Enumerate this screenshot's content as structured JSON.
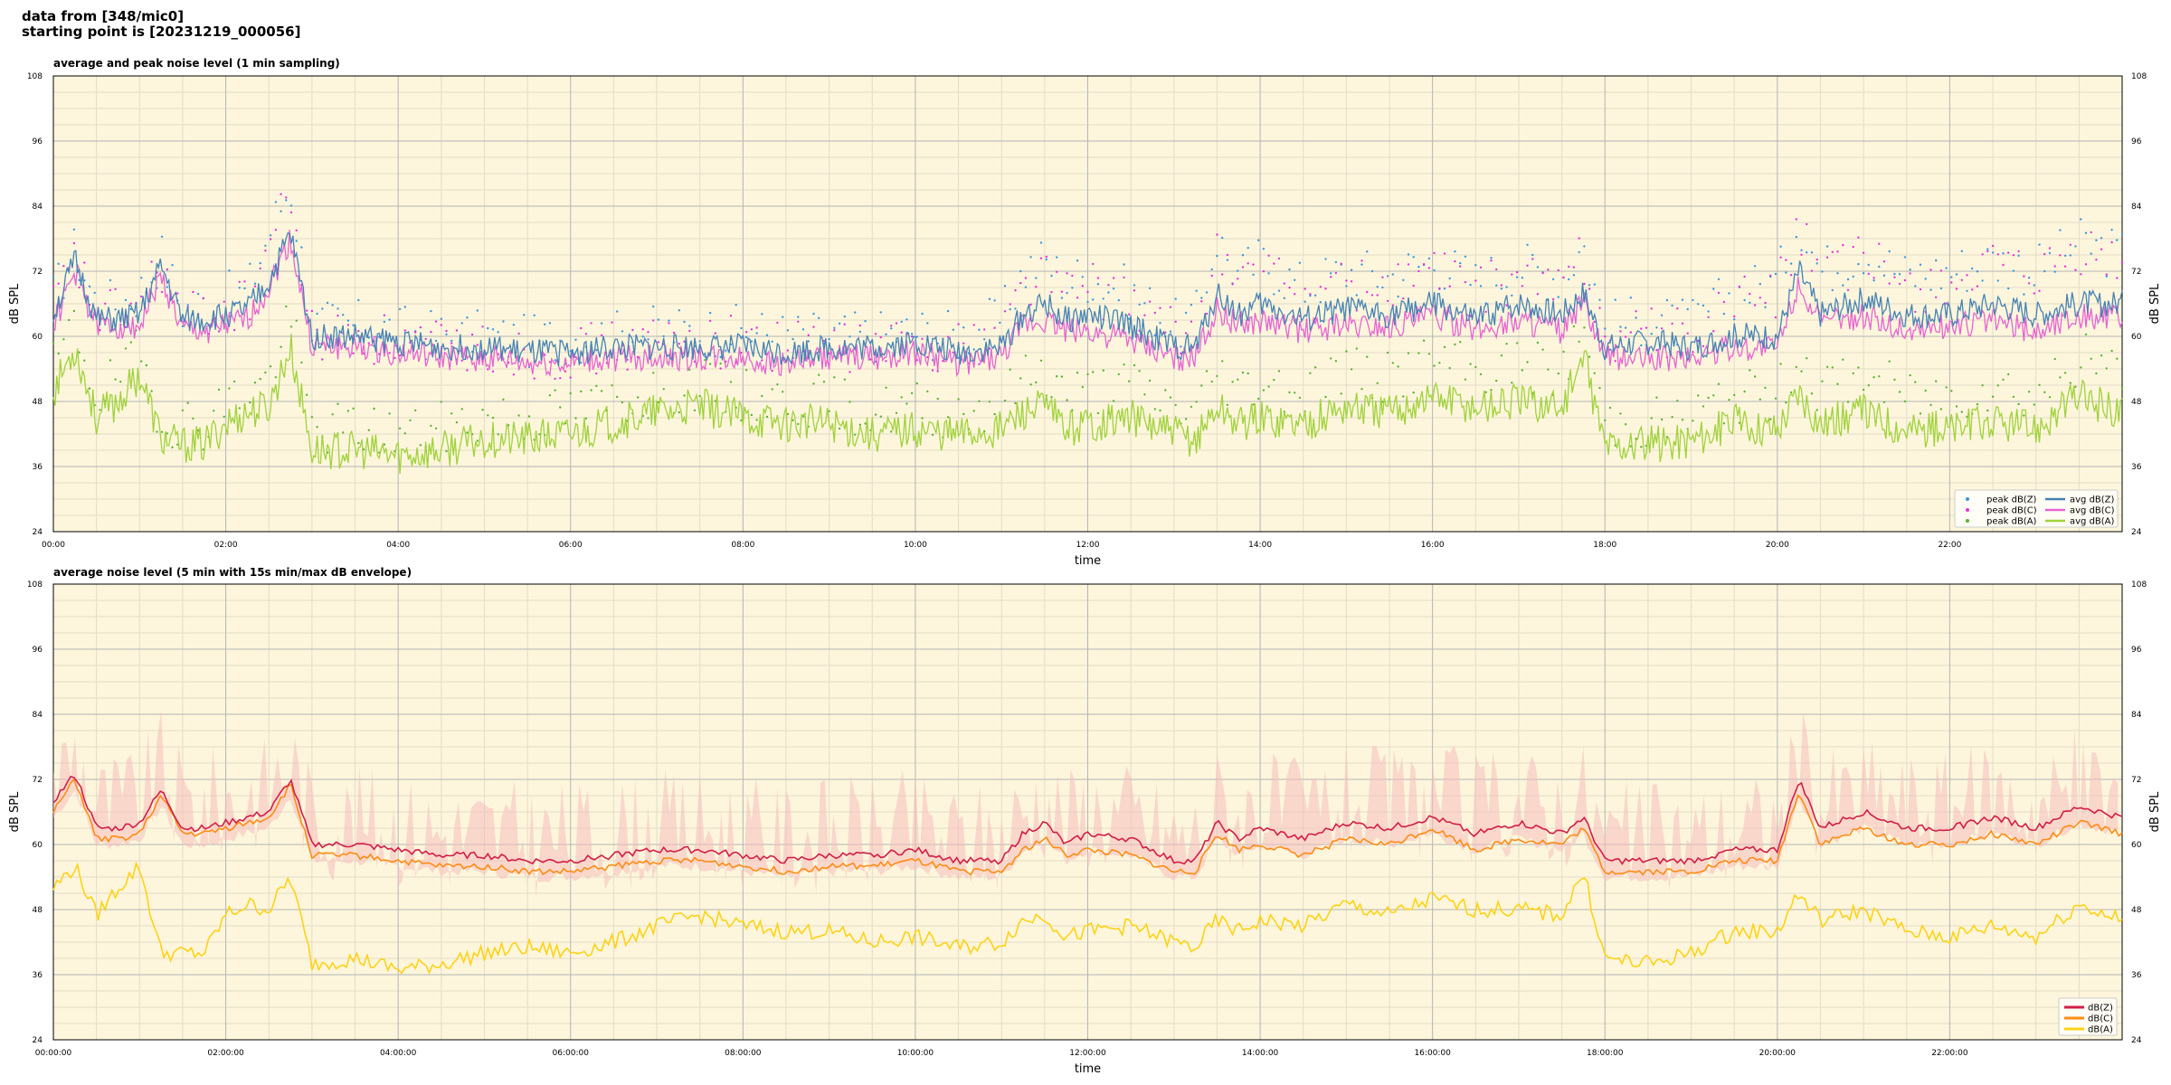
{
  "figure": {
    "title_line1": "data from [348/mic0]",
    "title_line2": "starting point is [20231219_000056]"
  },
  "colors": {
    "background": "#fdf6dc",
    "grid_major": "#b4b4b4",
    "grid_minor": "#e3dcc8",
    "peak_z": "#3c96dc",
    "peak_c": "#e632dc",
    "peak_a": "#5ab432",
    "avg_z": "#4682b4",
    "avg_c": "#e664d2",
    "avg_a": "#a0d23c",
    "dbz": "#d21e46",
    "dbc": "#ff8c14",
    "dba": "#ffd214",
    "envelope": "#f5bebe"
  },
  "chart_data": [
    {
      "type": "line",
      "title": "average and peak noise level (1 min sampling)",
      "xlabel": "time",
      "ylabel": "dB SPL",
      "ylim": [
        24,
        108
      ],
      "xlim_hours": [
        0,
        24
      ],
      "yticks": [
        24,
        36,
        48,
        60,
        72,
        84,
        96,
        108
      ],
      "xticks": [
        "00:00",
        "02:00",
        "04:00",
        "06:00",
        "08:00",
        "10:00",
        "12:00",
        "14:00",
        "16:00",
        "18:00",
        "20:00",
        "22:00"
      ],
      "grid": true,
      "legend_position": "bottom-right",
      "legend": [
        "peak dB(Z)",
        "peak dB(C)",
        "peak dB(A)",
        "avg dB(Z)",
        "avg dB(C)",
        "avg dB(A)"
      ],
      "x_hours": [
        0,
        0.25,
        0.5,
        0.75,
        1,
        1.25,
        1.5,
        1.75,
        2,
        2.25,
        2.5,
        2.75,
        3,
        3.5,
        4,
        4.5,
        5,
        5.5,
        6,
        6.5,
        7,
        7.5,
        8,
        8.5,
        9,
        9.5,
        10,
        10.5,
        11,
        11.25,
        11.5,
        11.75,
        12,
        12.5,
        13,
        13.25,
        13.5,
        13.75,
        14,
        14.5,
        15,
        15.5,
        16,
        16.5,
        17,
        17.5,
        17.75,
        18,
        18.5,
        19,
        19.5,
        20,
        20.25,
        20.5,
        21,
        21.5,
        22,
        22.5,
        23,
        23.5,
        24
      ],
      "series": [
        {
          "name": "avg dB(Z)",
          "values": [
            64,
            74,
            63,
            63,
            64,
            73,
            63,
            63,
            64,
            65,
            70,
            79,
            60,
            60,
            59,
            58,
            58,
            57,
            57,
            58,
            58,
            58,
            58,
            57,
            58,
            58,
            59,
            57,
            58,
            64,
            66,
            63,
            64,
            62,
            58,
            58,
            68,
            64,
            66,
            63,
            65,
            64,
            66,
            63,
            66,
            64,
            68,
            58,
            59,
            58,
            60,
            60,
            72,
            64,
            67,
            64,
            64,
            66,
            64,
            66,
            66
          ]
        },
        {
          "name": "avg dB(C)",
          "values": [
            62,
            72,
            62,
            62,
            62,
            71,
            61,
            61,
            62,
            63,
            69,
            78,
            58,
            58,
            57,
            56,
            56,
            55,
            55,
            56,
            56,
            56,
            56,
            55,
            56,
            56,
            57,
            55,
            56,
            62,
            63,
            61,
            61,
            59,
            56,
            56,
            65,
            62,
            63,
            61,
            62,
            62,
            64,
            61,
            63,
            61,
            66,
            56,
            56,
            56,
            58,
            58,
            70,
            62,
            64,
            61,
            62,
            63,
            61,
            64,
            63
          ]
        },
        {
          "name": "avg dB(A)",
          "values": [
            50,
            58,
            45,
            48,
            53,
            41,
            40,
            40,
            44,
            46,
            47,
            58,
            39,
            39,
            38,
            39,
            41,
            41,
            42,
            44,
            46,
            47,
            45,
            44,
            44,
            42,
            43,
            42,
            43,
            46,
            47,
            43,
            44,
            45,
            42,
            41,
            47,
            44,
            45,
            44,
            47,
            46,
            49,
            47,
            48,
            47,
            56,
            40,
            40,
            41,
            44,
            43,
            50,
            44,
            46,
            43,
            43,
            44,
            43,
            49,
            46
          ]
        },
        {
          "name": "peak dB(Z)",
          "values": [
            67,
            76,
            66,
            66,
            68,
            75,
            65,
            66,
            67,
            68,
            79,
            88,
            62,
            62,
            61,
            60,
            60,
            59,
            60,
            60,
            61,
            61,
            61,
            60,
            60,
            60,
            61,
            60,
            63,
            72,
            74,
            70,
            71,
            68,
            62,
            63,
            78,
            71,
            74,
            69,
            72,
            71,
            74,
            70,
            73,
            71,
            77,
            62,
            63,
            62,
            68,
            70,
            82,
            72,
            76,
            71,
            72,
            74,
            72,
            77,
            75
          ]
        },
        {
          "name": "peak dB(C)",
          "values": [
            65,
            74,
            64,
            64,
            66,
            73,
            63,
            64,
            65,
            66,
            77,
            86,
            60,
            60,
            59,
            58,
            58,
            57,
            57,
            58,
            59,
            59,
            59,
            58,
            58,
            58,
            59,
            58,
            61,
            70,
            72,
            68,
            69,
            66,
            60,
            61,
            76,
            69,
            72,
            67,
            70,
            69,
            72,
            68,
            71,
            69,
            75,
            60,
            61,
            60,
            66,
            68,
            80,
            70,
            74,
            69,
            70,
            72,
            70,
            75,
            73
          ]
        },
        {
          "name": "peak dB(A)",
          "values": [
            54,
            62,
            49,
            52,
            57,
            45,
            44,
            44,
            48,
            50,
            52,
            64,
            43,
            43,
            42,
            43,
            45,
            45,
            46,
            48,
            50,
            51,
            49,
            48,
            48,
            46,
            47,
            46,
            48,
            52,
            54,
            49,
            50,
            51,
            47,
            46,
            54,
            50,
            52,
            50,
            54,
            52,
            56,
            53,
            55,
            53,
            62,
            44,
            44,
            45,
            49,
            49,
            57,
            50,
            53,
            49,
            49,
            51,
            49,
            56,
            53
          ]
        }
      ]
    },
    {
      "type": "line",
      "title": "average noise level (5 min with 15s min/max dB envelope)",
      "xlabel": "time",
      "ylabel": "dB SPL",
      "ylim": [
        24,
        108
      ],
      "xlim_hours": [
        0,
        24
      ],
      "yticks": [
        24,
        36,
        48,
        60,
        72,
        84,
        96,
        108
      ],
      "xticks": [
        "00:00:00",
        "02:00:00",
        "04:00:00",
        "06:00:00",
        "08:00:00",
        "10:00:00",
        "12:00:00",
        "14:00:00",
        "16:00:00",
        "18:00:00",
        "20:00:00",
        "22:00:00"
      ],
      "grid": true,
      "legend_position": "bottom-right",
      "legend": [
        "dB(Z)",
        "dB(C)",
        "dB(A)"
      ],
      "x_hours": [
        0,
        0.25,
        0.5,
        0.75,
        1,
        1.25,
        1.5,
        1.75,
        2,
        2.25,
        2.5,
        2.75,
        3,
        3.5,
        4,
        4.5,
        5,
        5.5,
        6,
        6.5,
        7,
        7.5,
        8,
        8.5,
        9,
        9.5,
        10,
        10.5,
        11,
        11.25,
        11.5,
        11.75,
        12,
        12.5,
        13,
        13.25,
        13.5,
        13.75,
        14,
        14.5,
        15,
        15.5,
        16,
        16.5,
        17,
        17.5,
        17.75,
        18,
        18.5,
        19,
        19.5,
        20,
        20.25,
        20.5,
        21,
        21.5,
        22,
        22.5,
        23,
        23.5,
        24
      ],
      "series": [
        {
          "name": "dB(Z)",
          "values": [
            68,
            73,
            63,
            63,
            64,
            70,
            63,
            63,
            64,
            65,
            66,
            72,
            60,
            60,
            59,
            58,
            58,
            57,
            57,
            58,
            59,
            59,
            58,
            57,
            58,
            58,
            59,
            57,
            57,
            62,
            64,
            60,
            62,
            61,
            57,
            57,
            64,
            61,
            63,
            61,
            64,
            63,
            65,
            62,
            64,
            62,
            65,
            57,
            57,
            57,
            59,
            59,
            72,
            63,
            66,
            63,
            63,
            65,
            63,
            67,
            65
          ]
        },
        {
          "name": "dB(C)",
          "values": [
            66,
            72,
            61,
            61,
            62,
            69,
            62,
            62,
            63,
            64,
            65,
            71,
            58,
            58,
            57,
            56,
            56,
            55,
            55,
            56,
            57,
            57,
            56,
            55,
            56,
            56,
            57,
            55,
            55,
            59,
            61,
            58,
            59,
            58,
            55,
            55,
            62,
            59,
            60,
            58,
            61,
            60,
            63,
            59,
            61,
            60,
            63,
            55,
            55,
            55,
            57,
            57,
            70,
            60,
            63,
            60,
            60,
            62,
            60,
            64,
            62
          ]
        },
        {
          "name": "dB(A)",
          "values": [
            52,
            56,
            47,
            52,
            56,
            40,
            40,
            40,
            47,
            49,
            48,
            54,
            38,
            39,
            37,
            38,
            40,
            41,
            40,
            42,
            45,
            47,
            45,
            44,
            44,
            42,
            43,
            41,
            42,
            46,
            47,
            43,
            44,
            45,
            42,
            41,
            46,
            44,
            46,
            45,
            49,
            47,
            50,
            48,
            48,
            47,
            55,
            39,
            38,
            40,
            44,
            44,
            51,
            46,
            48,
            44,
            43,
            45,
            43,
            49,
            46
          ]
        }
      ]
    }
  ]
}
